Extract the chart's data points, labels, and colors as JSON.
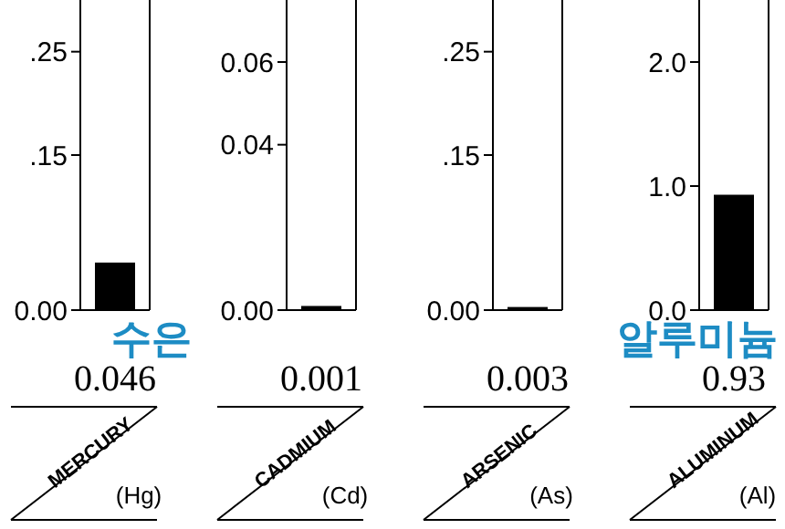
{
  "chart_data": [
    {
      "type": "bar",
      "categories": [
        "MERCURY"
      ],
      "values": [
        0.046
      ],
      "color": "#000000",
      "ylim": [
        0,
        0.3
      ],
      "yticks": [
        {
          "value": 0,
          "label": "0.00"
        },
        {
          "value": 0.15,
          "label": ".15"
        },
        {
          "value": 0.25,
          "label": ".25"
        }
      ],
      "data_labels": true,
      "annotations": [
        "(Hg)",
        "수은"
      ]
    },
    {
      "type": "bar",
      "categories": [
        "CADMIUM"
      ],
      "values": [
        0.001
      ],
      "color": "#000000",
      "ylim": [
        0,
        0.075
      ],
      "yticks": [
        {
          "value": 0,
          "label": "0.00"
        },
        {
          "value": 0.04,
          "label": "0.04"
        },
        {
          "value": 0.06,
          "label": "0.06"
        }
      ],
      "data_labels": true,
      "annotations": [
        "(Cd)"
      ]
    },
    {
      "type": "bar",
      "categories": [
        "ARSENIC"
      ],
      "values": [
        0.003
      ],
      "color": "#000000",
      "ylim": [
        0,
        0.3
      ],
      "yticks": [
        {
          "value": 0,
          "label": "0.00"
        },
        {
          "value": 0.15,
          "label": ".15"
        },
        {
          "value": 0.25,
          "label": ".25"
        }
      ],
      "data_labels": true,
      "annotations": [
        "(As)"
      ]
    },
    {
      "type": "bar",
      "categories": [
        "ALUMINUM"
      ],
      "values": [
        0.93
      ],
      "color": "#000000",
      "ylim": [
        0,
        2.5
      ],
      "yticks": [
        {
          "value": 0,
          "label": "0.0"
        },
        {
          "value": 1,
          "label": "1.0"
        },
        {
          "value": 2,
          "label": "2.0"
        }
      ],
      "data_labels": true,
      "annotations": [
        "(Al)",
        "알루미늄"
      ]
    }
  ]
}
